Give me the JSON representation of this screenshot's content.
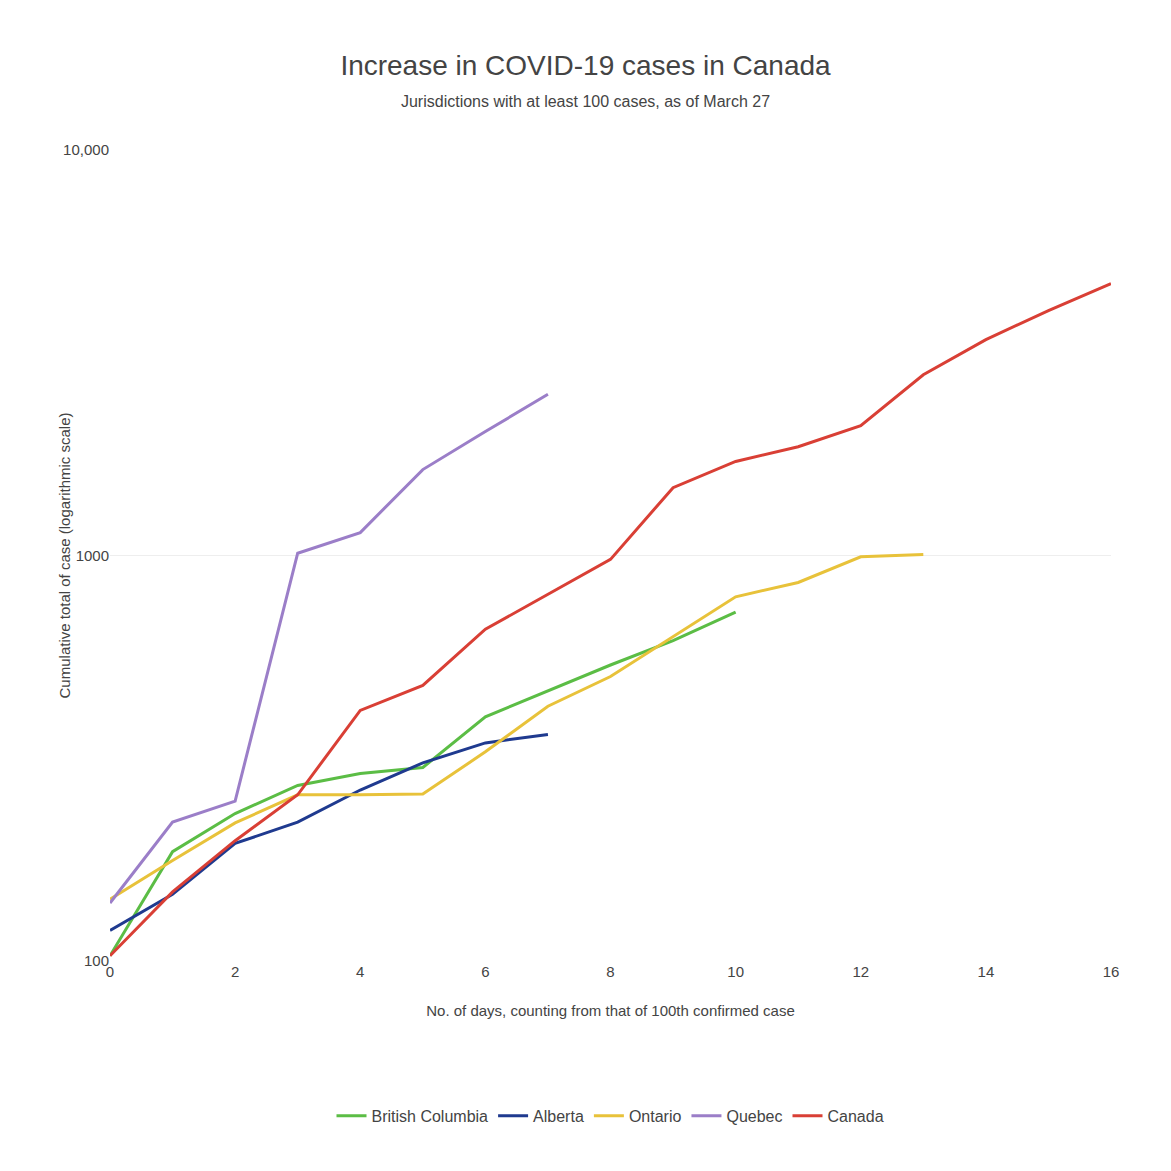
{
  "chart_data": {
    "type": "line",
    "title": "Increase in COVID-19 cases in Canada",
    "subtitle": "Jurisdictions with at least 100 cases, as of March 27",
    "xlabel": "No. of days, counting from that of 100th confirmed case",
    "ylabel": "Cumulative total of case (logarithmic scale)",
    "xlim": [
      0,
      16
    ],
    "ylim": [
      100,
      10000
    ],
    "xticks": [
      0,
      2,
      4,
      6,
      8,
      10,
      12,
      14,
      16
    ],
    "yticks": [
      100,
      1000,
      {
        "value": 10000,
        "label": "10,000"
      }
    ],
    "log": "y",
    "grid": true,
    "legend": "bottom",
    "series": [
      {
        "name": "British Columbia",
        "color": "#5BBD45",
        "x": [
          0,
          1,
          2,
          3,
          4,
          5,
          6,
          7,
          8,
          9,
          10
        ],
        "values": [
          103,
          186,
          231,
          271,
          290,
          300,
          400,
          464,
          537,
          617,
          725
        ]
      },
      {
        "name": "Alberta",
        "color": "#1F3A8F",
        "x": [
          0,
          1,
          2,
          3,
          4,
          5,
          6,
          7
        ],
        "values": [
          119,
          146,
          195,
          220,
          264,
          308,
          345,
          362
        ]
      },
      {
        "name": "Ontario",
        "color": "#E8C23A",
        "x": [
          0,
          1,
          2,
          3,
          4,
          5,
          6,
          7,
          8,
          9,
          10,
          11,
          12,
          13
        ],
        "values": [
          142,
          177,
          219,
          257,
          257,
          258,
          328,
          425,
          503,
          630,
          791,
          858,
          993,
          1005
        ]
      },
      {
        "name": "Quebec",
        "color": "#9B7EC8",
        "x": [
          0,
          1,
          2,
          3,
          4,
          5,
          6,
          7
        ],
        "values": [
          139,
          220,
          248,
          1013,
          1139,
          1629,
          2021,
          2498
        ]
      },
      {
        "name": "Canada",
        "color": "#D93F35",
        "x": [
          0,
          1,
          2,
          3,
          4,
          5,
          6,
          7,
          8,
          9,
          10,
          11,
          12,
          13,
          14,
          15,
          16
        ],
        "values": [
          103,
          148,
          198,
          257,
          415,
          478,
          658,
          802,
          978,
          1470,
          1706,
          1854,
          2091,
          2790,
          3408,
          4018,
          4682
        ]
      }
    ]
  }
}
